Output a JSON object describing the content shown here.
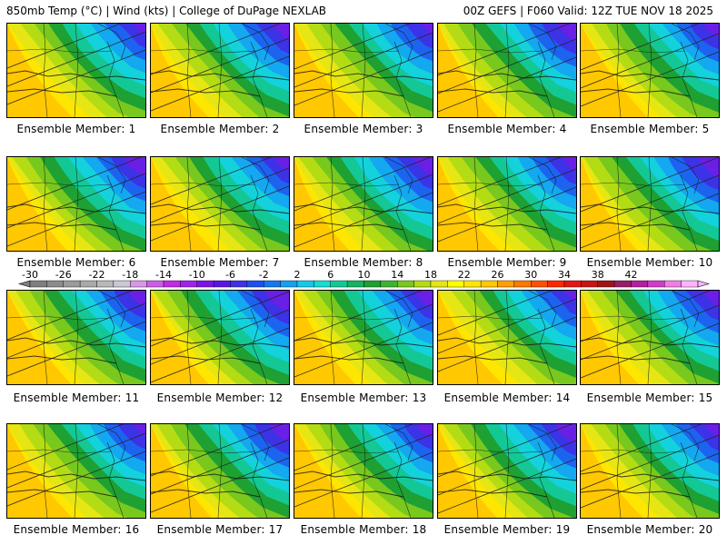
{
  "header": {
    "left_title": "850mb Temp (°C) | Wind (kts) | College of DuPage NEXLAB",
    "right_title": "00Z GEFS | F060 Valid: 12Z TUE NOV 18 2025"
  },
  "panels": [
    {
      "label": "Ensemble Member: 1"
    },
    {
      "label": "Ensemble Member: 2"
    },
    {
      "label": "Ensemble Member: 3"
    },
    {
      "label": "Ensemble Member: 4"
    },
    {
      "label": "Ensemble Member: 5"
    },
    {
      "label": "Ensemble Member: 6"
    },
    {
      "label": "Ensemble Member: 7"
    },
    {
      "label": "Ensemble Member: 8"
    },
    {
      "label": "Ensemble Member: 9"
    },
    {
      "label": "Ensemble Member: 10"
    },
    {
      "label": "Ensemble Member: 11"
    },
    {
      "label": "Ensemble Member: 12"
    },
    {
      "label": "Ensemble Member: 13"
    },
    {
      "label": "Ensemble Member: 14"
    },
    {
      "label": "Ensemble Member: 15"
    },
    {
      "label": "Ensemble Member: 16"
    },
    {
      "label": "Ensemble Member: 17"
    },
    {
      "label": "Ensemble Member: 18"
    },
    {
      "label": "Ensemble Member: 19"
    },
    {
      "label": "Ensemble Member: 20"
    }
  ],
  "colorbar": {
    "ticks": [
      "-30",
      "-26",
      "-22",
      "-18",
      "-14",
      "-10",
      "-6",
      "-2",
      "2",
      "6",
      "10",
      "14",
      "18",
      "22",
      "26",
      "30",
      "34",
      "38",
      "42"
    ],
    "colors": [
      "#7f7f7f",
      "#8c8c8c",
      "#9b9b9b",
      "#a9a9a9",
      "#b8b8b8",
      "#c8c8d8",
      "#d896e6",
      "#ce5de6",
      "#c02be6",
      "#a020f0",
      "#7a14e6",
      "#5a14e6",
      "#3c32e6",
      "#1c50f0",
      "#1478f0",
      "#14a0f0",
      "#14c8e6",
      "#14dcd2",
      "#14c896",
      "#14b464",
      "#1ea032",
      "#3cb432",
      "#78c81e",
      "#b4dc14",
      "#e6e614",
      "#ffff00",
      "#ffe600",
      "#ffc800",
      "#ffa000",
      "#ff7800",
      "#ff5000",
      "#ff2800",
      "#e61414",
      "#c81414",
      "#a01414",
      "#961e64",
      "#b41ea0",
      "#d23cc8",
      "#f07de6",
      "#ffb4ff"
    ]
  }
}
